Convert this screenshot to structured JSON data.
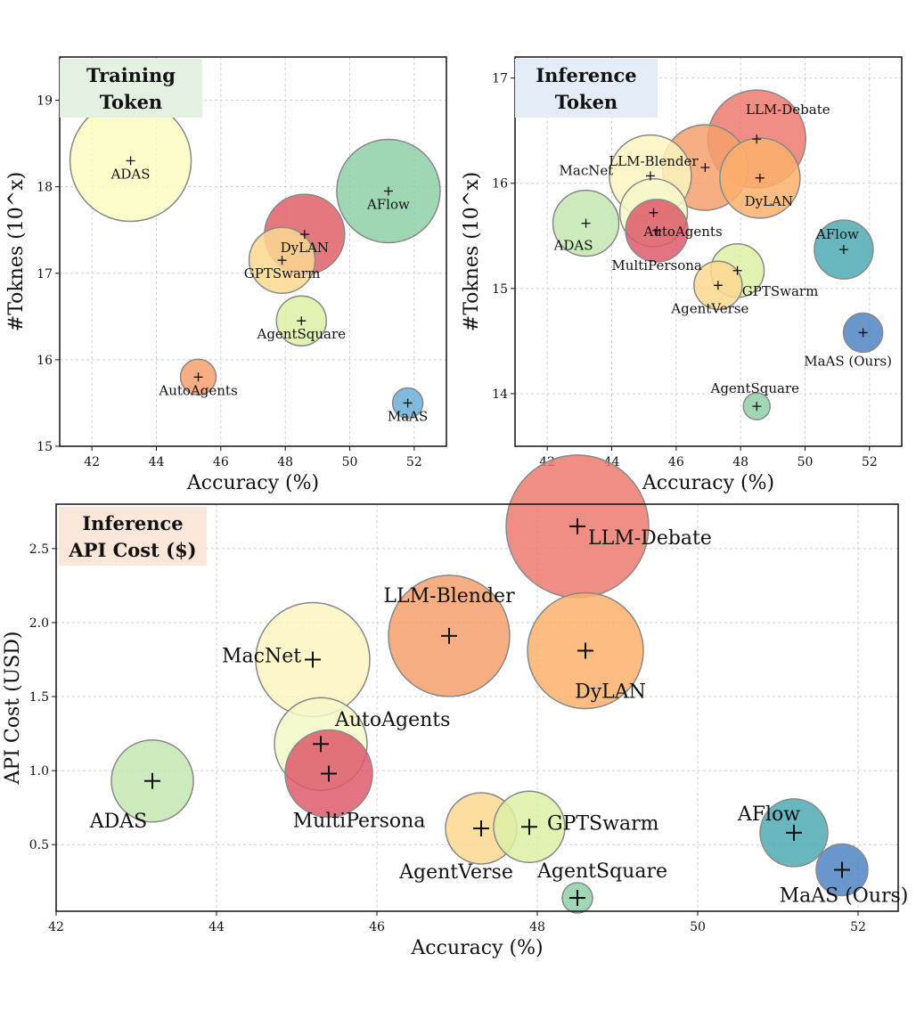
{
  "chart_data": [
    {
      "type": "scatter",
      "title_lines": [
        "Training",
        "Token"
      ],
      "title_bg": "#e3f1e0",
      "xlabel": "Accuracy (%)",
      "ylabel": "#Toknes (10^x)",
      "xlim": [
        41,
        53
      ],
      "ylim": [
        15,
        19.5
      ],
      "xticks": [
        42,
        44,
        46,
        48,
        50,
        52
      ],
      "yticks": [
        15,
        16,
        17,
        18,
        19
      ],
      "grid": true,
      "points": [
        {
          "label": "ADAS",
          "x": 43.2,
          "y": 18.3,
          "size": 68,
          "color": "#fdfbc2"
        },
        {
          "label": "AFlow",
          "x": 51.2,
          "y": 17.95,
          "size": 58,
          "color": "#8ed0a8"
        },
        {
          "label": "DyLAN",
          "x": 48.6,
          "y": 17.45,
          "size": 45,
          "color": "#e06068"
        },
        {
          "label": "GPTSwarm",
          "x": 47.9,
          "y": 17.15,
          "size": 37,
          "color": "#fdd891"
        },
        {
          "label": "AgentSquare",
          "x": 48.5,
          "y": 16.45,
          "size": 28,
          "color": "#dcf0a4"
        },
        {
          "label": "AutoAgents",
          "x": 45.3,
          "y": 15.8,
          "size": 20,
          "color": "#f4a06c"
        },
        {
          "label": "MaAS",
          "x": 51.8,
          "y": 15.5,
          "size": 17,
          "color": "#6aaed6"
        }
      ]
    },
    {
      "type": "scatter",
      "title_lines": [
        "Inference",
        "Token"
      ],
      "title_bg": "#e3ecf7",
      "xlabel": "Accuracy (%)",
      "ylabel": "#Toknes (10^x)",
      "xlim": [
        41,
        53
      ],
      "ylim": [
        13.5,
        17.2
      ],
      "xticks": [
        42,
        44,
        46,
        48,
        50,
        52
      ],
      "yticks": [
        14,
        15,
        16,
        17
      ],
      "grid": true,
      "points": [
        {
          "label": "LLM-Blender",
          "x": 46.9,
          "y": 16.15,
          "size": 48,
          "color": "#f4a06c"
        },
        {
          "label": "LLM-Debate",
          "x": 48.5,
          "y": 16.42,
          "size": 55,
          "color": "#ec7a6e"
        },
        {
          "label": "MacNet",
          "x": 45.2,
          "y": 16.07,
          "size": 46,
          "color": "#fdf5bf"
        },
        {
          "label": "DyLAN",
          "x": 48.6,
          "y": 16.05,
          "size": 45,
          "color": "#fbb06c"
        },
        {
          "label": "ADAS",
          "x": 43.2,
          "y": 15.62,
          "size": 37,
          "color": "#c3e6b0"
        },
        {
          "label": "MultiPersona",
          "x": 45.4,
          "y": 15.55,
          "size": 35,
          "color": "#de5a6a"
        },
        {
          "label": "AutoAgents",
          "x": 45.3,
          "y": 15.72,
          "size": 38,
          "color": "#f4f8c8"
        },
        {
          "label": "AFlow",
          "x": 51.2,
          "y": 15.37,
          "size": 33,
          "color": "#4eaab3"
        },
        {
          "label": "GPTSwarm",
          "x": 47.9,
          "y": 15.17,
          "size": 30,
          "color": "#dcf0a4"
        },
        {
          "label": "AgentVerse",
          "x": 47.3,
          "y": 15.03,
          "size": 27,
          "color": "#fdd891"
        },
        {
          "label": "MaAS (Ours)",
          "x": 51.8,
          "y": 14.58,
          "size": 22,
          "color": "#4f84c4"
        },
        {
          "label": "AgentSquare",
          "x": 48.5,
          "y": 13.88,
          "size": 15,
          "color": "#8ed0a8"
        }
      ]
    },
    {
      "type": "scatter",
      "title_lines": [
        "Inference",
        "API Cost ($)"
      ],
      "title_bg": "#fbe6da",
      "xlabel": "Accuracy (%)",
      "ylabel": "API Cost (USD)",
      "xlim": [
        42,
        52.5
      ],
      "ylim": [
        0.05,
        2.8
      ],
      "xticks": [
        42,
        44,
        46,
        48,
        50,
        52
      ],
      "ytick_labels": [
        "0.5",
        "1.0",
        "1.5",
        "2.0",
        "2.5"
      ],
      "yticks": [
        0.5,
        1.0,
        1.5,
        2.0,
        2.5
      ],
      "grid": true,
      "points": [
        {
          "label": "LLM-Debate",
          "x": 48.5,
          "y": 2.65,
          "size": 80,
          "color": "#ec7a6e"
        },
        {
          "label": "LLM-Blender",
          "x": 46.9,
          "y": 1.91,
          "size": 68,
          "color": "#f4a06c"
        },
        {
          "label": "DyLAN",
          "x": 48.6,
          "y": 1.81,
          "size": 65,
          "color": "#fbb06c"
        },
        {
          "label": "MacNet",
          "x": 45.2,
          "y": 1.75,
          "size": 64,
          "color": "#fdf5bf"
        },
        {
          "label": "MultiPersona",
          "x": 45.4,
          "y": 0.98,
          "size": 49,
          "color": "#de5a6a"
        },
        {
          "label": "AutoAgents",
          "x": 45.3,
          "y": 1.18,
          "size": 52,
          "color": "#f4f8c8"
        },
        {
          "label": "ADAS",
          "x": 43.2,
          "y": 0.93,
          "size": 46,
          "color": "#c3e6b0"
        },
        {
          "label": "AgentVerse",
          "x": 47.3,
          "y": 0.61,
          "size": 40,
          "color": "#fdd891"
        },
        {
          "label": "GPTSwarm",
          "x": 47.9,
          "y": 0.62,
          "size": 40,
          "color": "#dcf0a4"
        },
        {
          "label": "AFlow",
          "x": 51.2,
          "y": 0.58,
          "size": 38,
          "color": "#4eaab3"
        },
        {
          "label": "MaAS (Ours)",
          "x": 51.8,
          "y": 0.33,
          "size": 29,
          "color": "#4f84c4"
        },
        {
          "label": "AgentSquare",
          "x": 48.5,
          "y": 0.14,
          "size": 17,
          "color": "#8ed0a8"
        }
      ]
    }
  ]
}
